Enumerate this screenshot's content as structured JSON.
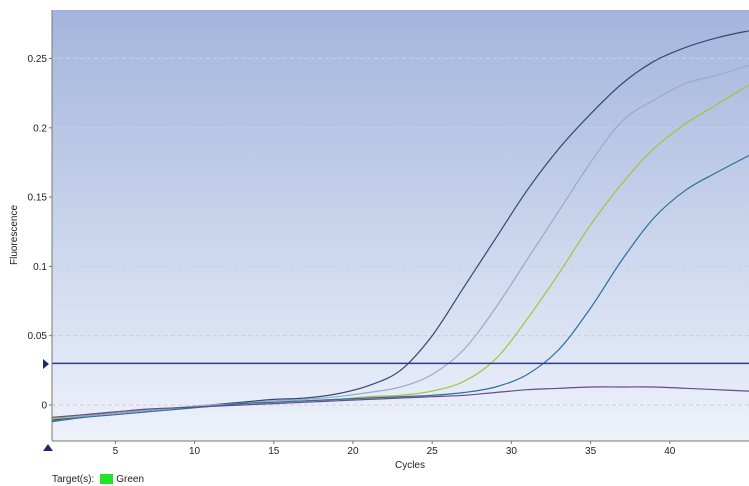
{
  "chart_data": {
    "type": "line",
    "title": "",
    "xlabel": "Cycles",
    "ylabel": "Fluorescence",
    "xlim": [
      1,
      45
    ],
    "ylim": [
      -0.026,
      0.285
    ],
    "x_ticks": [
      5,
      10,
      15,
      20,
      25,
      30,
      35,
      40
    ],
    "y_ticks": [
      0,
      0.05,
      0.1,
      0.15,
      0.2,
      0.25
    ],
    "y_tick_labels": [
      "0",
      "0.05",
      "0.1",
      "0.15",
      "0.2",
      "0.25"
    ],
    "grid": "horizontal dashed",
    "threshold": 0.03,
    "x": [
      1,
      3,
      5,
      7,
      9,
      11,
      13,
      15,
      17,
      19,
      21,
      23,
      25,
      27,
      29,
      31,
      33,
      35,
      37,
      39,
      41,
      43,
      45
    ],
    "series": [
      {
        "color": "#2f4a73",
        "values": [
          -0.011,
          -0.008,
          -0.006,
          -0.004,
          -0.002,
          0.0,
          0.002,
          0.004,
          0.005,
          0.008,
          0.014,
          0.025,
          0.05,
          0.085,
          0.12,
          0.155,
          0.185,
          0.21,
          0.232,
          0.248,
          0.258,
          0.265,
          0.27
        ]
      },
      {
        "color": "#9aa8cc",
        "values": [
          -0.01,
          -0.008,
          -0.006,
          -0.004,
          -0.002,
          0.0,
          0.001,
          0.003,
          0.004,
          0.006,
          0.009,
          0.013,
          0.022,
          0.04,
          0.07,
          0.105,
          0.14,
          0.175,
          0.205,
          0.22,
          0.232,
          0.238,
          0.245
        ]
      },
      {
        "color": "#a7c23a",
        "values": [
          -0.01,
          -0.007,
          -0.005,
          -0.003,
          -0.002,
          -0.001,
          0.001,
          0.002,
          0.003,
          0.004,
          0.006,
          0.007,
          0.01,
          0.017,
          0.033,
          0.062,
          0.095,
          0.13,
          0.16,
          0.185,
          0.203,
          0.217,
          0.231
        ]
      },
      {
        "color": "#2c6fa0",
        "values": [
          -0.012,
          -0.009,
          -0.007,
          -0.005,
          -0.003,
          -0.001,
          0.001,
          0.002,
          0.003,
          0.004,
          0.005,
          0.006,
          0.007,
          0.009,
          0.013,
          0.022,
          0.04,
          0.07,
          0.105,
          0.135,
          0.155,
          0.168,
          0.18
        ]
      },
      {
        "color": "#6a4a8a",
        "values": [
          -0.009,
          -0.007,
          -0.005,
          -0.003,
          -0.002,
          -0.001,
          0.0,
          0.001,
          0.002,
          0.003,
          0.004,
          0.005,
          0.006,
          0.007,
          0.009,
          0.011,
          0.012,
          0.013,
          0.013,
          0.013,
          0.012,
          0.011,
          0.01
        ]
      }
    ],
    "legend": {
      "label": "Target(s):",
      "entries": [
        {
          "name": "Green",
          "color": "#22e32b"
        }
      ]
    },
    "colors": {
      "background_top": "#a3b5dc",
      "background_bottom": "#eef2fb",
      "threshold": "#2e3a8c"
    }
  }
}
